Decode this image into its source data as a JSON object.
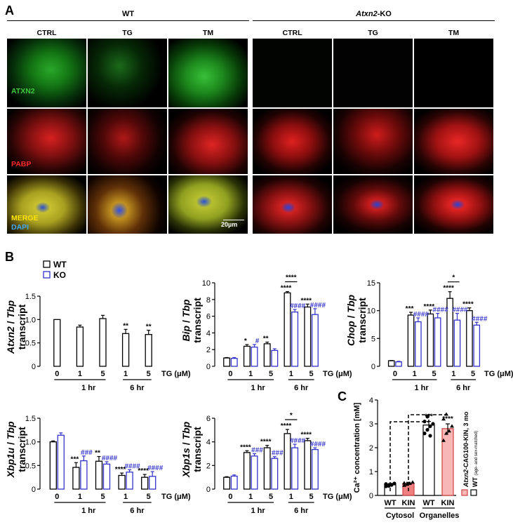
{
  "panel_a": {
    "letter": "A",
    "groups": [
      {
        "title": "WT",
        "title_style": "normal",
        "columns": [
          "CTRL",
          "TG",
          "TM"
        ]
      },
      {
        "title_italic": "Atxn2",
        "title_rest": "-KO",
        "columns": [
          "CTRL",
          "TG",
          "TM"
        ]
      }
    ],
    "rows": [
      {
        "label": "ATXN2",
        "label_color": "#3ec73e"
      },
      {
        "label": "PABP",
        "label_color": "#ff2a2a"
      },
      {
        "label": "MERGE",
        "label_color": "#ffe400",
        "label2": "DAPI",
        "label2_color": "#3fa9f5"
      }
    ],
    "scale_bar": "20µm"
  },
  "panel_b": {
    "letter": "B"
  },
  "panel_c": {
    "letter": "C"
  },
  "legend": {
    "wt": "WT",
    "ko": "KO"
  },
  "colors": {
    "ko": "#3333cc",
    "kin_fill": "#f7b7b7",
    "kin_edge": "#d04040",
    "sig": "#3333cc"
  },
  "chart_data": [
    {
      "type": "bar",
      "ylabel_italic": "Atxn2",
      "ylabel_rest": " / ",
      "ylabel_italic2": "Tbp",
      "ylabel2": "transcript",
      "ylim": [
        0,
        1.5
      ],
      "yticks": [
        0,
        0.5,
        1.0,
        1.5
      ],
      "ytick_labels": [
        "0",
        "0.5",
        "1.0",
        "1.5"
      ],
      "categories": [
        "0",
        "1",
        "5",
        "1",
        "5"
      ],
      "time_groups": [
        "1 hr",
        "6 hr"
      ],
      "xunit": "TG (μM)",
      "series": [
        {
          "name": "WT",
          "values": [
            1.0,
            0.84,
            1.02,
            0.7,
            0.68
          ],
          "errors": [
            0,
            0.04,
            0.07,
            0.09,
            0.09
          ]
        },
        {
          "name": "KO",
          "values": [
            null,
            null,
            null,
            null,
            null
          ],
          "errors": []
        }
      ],
      "annotations": [
        {
          "cat": 3,
          "series": 0,
          "text": "**"
        },
        {
          "cat": 4,
          "series": 0,
          "text": "**"
        }
      ]
    },
    {
      "type": "bar",
      "ylabel_italic": "Bip",
      "ylabel_rest": " / ",
      "ylabel_italic2": "Tbp",
      "ylabel2": "transcript",
      "ylim": [
        0,
        10
      ],
      "yticks": [
        0,
        2,
        4,
        6,
        8,
        10
      ],
      "ytick_labels": [
        "0",
        "2",
        "4",
        "6",
        "8",
        "10"
      ],
      "categories": [
        "0",
        "1",
        "5",
        "1",
        "5"
      ],
      "time_groups": [
        "1 hr",
        "6 hr"
      ],
      "xunit": "TG (μM)",
      "series": [
        {
          "name": "WT",
          "values": [
            1.0,
            2.4,
            2.7,
            8.8,
            7.1
          ],
          "errors": [
            0.05,
            0.2,
            0.2,
            0.15,
            0.35
          ]
        },
        {
          "name": "KO",
          "values": [
            0.95,
            2.3,
            1.9,
            6.5,
            6.2
          ],
          "errors": [
            0.1,
            0.3,
            0.2,
            0.3,
            0.7
          ]
        }
      ],
      "annotations": [
        {
          "cat": 1,
          "series": 0,
          "text": "*"
        },
        {
          "cat": 1,
          "series": 1,
          "text": "#"
        },
        {
          "cat": 2,
          "series": 0,
          "text": "**"
        },
        {
          "cat": 3,
          "series": 0,
          "text": "****"
        },
        {
          "cat": 3,
          "series": 1,
          "text": "####"
        },
        {
          "cat": 4,
          "series": 0,
          "text": "****"
        },
        {
          "cat": 4,
          "series": 1,
          "text": "####"
        }
      ],
      "brackets": [
        {
          "cat": 3,
          "text": "****"
        }
      ]
    },
    {
      "type": "bar",
      "ylabel_italic": "Chop",
      "ylabel_rest": " / ",
      "ylabel_italic2": "Tbp",
      "ylabel2": "transcript",
      "ylim": [
        0,
        15
      ],
      "yticks": [
        0,
        5,
        10,
        15
      ],
      "ytick_labels": [
        "0",
        "5",
        "10",
        "15"
      ],
      "categories": [
        "0",
        "1",
        "5",
        "1",
        "5"
      ],
      "time_groups": [
        "1 hr",
        "6 hr"
      ],
      "xunit": "TG (μM)",
      "series": [
        {
          "name": "WT",
          "values": [
            1.0,
            9.2,
            9.4,
            12.2,
            10.0
          ],
          "errors": [
            0.05,
            0.5,
            0.7,
            1.2,
            0.5
          ]
        },
        {
          "name": "KO",
          "values": [
            0.8,
            8.0,
            8.7,
            8.3,
            7.4
          ],
          "errors": [
            0.1,
            0.7,
            0.8,
            1.2,
            0.5
          ]
        }
      ],
      "annotations": [
        {
          "cat": 1,
          "series": 0,
          "text": "***"
        },
        {
          "cat": 1,
          "series": 1,
          "text": "####"
        },
        {
          "cat": 2,
          "series": 0,
          "text": "****"
        },
        {
          "cat": 2,
          "series": 1,
          "text": "####"
        },
        {
          "cat": 3,
          "series": 0,
          "text": "****"
        },
        {
          "cat": 3,
          "series": 1,
          "text": "####"
        },
        {
          "cat": 4,
          "series": 0,
          "text": "****"
        },
        {
          "cat": 4,
          "series": 1,
          "text": "####"
        }
      ],
      "brackets": [
        {
          "cat": 3,
          "text": "*"
        }
      ]
    },
    {
      "type": "bar",
      "ylabel_italic": "Xbp1u",
      "ylabel_rest": " / ",
      "ylabel_italic2": "Tbp",
      "ylabel2": "transcript",
      "ylim": [
        0,
        1.5
      ],
      "yticks": [
        0,
        0.5,
        1.0,
        1.5
      ],
      "ytick_labels": [
        "0",
        "0.5",
        "1.0",
        "1.5"
      ],
      "categories": [
        "0",
        "1",
        "5",
        "1",
        "5"
      ],
      "time_groups": [
        "1 hr",
        "6 hr"
      ],
      "xunit": "TG (μM)",
      "series": [
        {
          "name": "WT",
          "values": [
            1.0,
            0.46,
            0.59,
            0.29,
            0.25
          ],
          "errors": [
            0.02,
            0.1,
            0.1,
            0.05,
            0.06
          ]
        },
        {
          "name": "KO",
          "values": [
            1.14,
            0.6,
            0.53,
            0.36,
            0.27
          ],
          "errors": [
            0.05,
            0.1,
            0.05,
            0.05,
            0.1
          ]
        }
      ],
      "annotations": [
        {
          "cat": 1,
          "series": 0,
          "text": "***"
        },
        {
          "cat": 1,
          "series": 1,
          "text": "###"
        },
        {
          "cat": 2,
          "series": 0,
          "text": "**"
        },
        {
          "cat": 2,
          "series": 1,
          "text": "####"
        },
        {
          "cat": 3,
          "series": 0,
          "text": "****"
        },
        {
          "cat": 3,
          "series": 1,
          "text": "####"
        },
        {
          "cat": 4,
          "series": 0,
          "text": "****"
        },
        {
          "cat": 4,
          "series": 1,
          "text": "####"
        }
      ]
    },
    {
      "type": "bar",
      "ylabel_italic": "Xbp1s",
      "ylabel_rest": " / ",
      "ylabel_italic2": "Tbp",
      "ylabel2": "transcript",
      "ylim": [
        0,
        6
      ],
      "yticks": [
        0,
        2,
        4,
        6
      ],
      "ytick_labels": [
        "0",
        "2",
        "4",
        "6"
      ],
      "categories": [
        "0",
        "1",
        "5",
        "1",
        "5"
      ],
      "time_groups": [
        "1 hr",
        "6 hr"
      ],
      "xunit": "TG (μM)",
      "series": [
        {
          "name": "WT",
          "values": [
            1.0,
            3.1,
            3.5,
            4.7,
            4.1
          ],
          "errors": [
            0.05,
            0.15,
            0.2,
            0.35,
            0.2
          ]
        },
        {
          "name": "KO",
          "values": [
            1.1,
            2.8,
            2.6,
            3.5,
            3.35
          ],
          "errors": [
            0.1,
            0.2,
            0.15,
            0.3,
            0.15
          ]
        }
      ],
      "annotations": [
        {
          "cat": 1,
          "series": 0,
          "text": "****"
        },
        {
          "cat": 1,
          "series": 1,
          "text": "###"
        },
        {
          "cat": 2,
          "series": 0,
          "text": "****"
        },
        {
          "cat": 2,
          "series": 1,
          "text": "###"
        },
        {
          "cat": 3,
          "series": 0,
          "text": "****"
        },
        {
          "cat": 3,
          "series": 1,
          "text": "####"
        },
        {
          "cat": 4,
          "series": 0,
          "text": "****"
        },
        {
          "cat": 4,
          "series": 1,
          "text": "####"
        }
      ],
      "brackets": [
        {
          "cat": 3,
          "text": "*"
        }
      ]
    },
    {
      "type": "scatter",
      "ylabel": "Ca²⁺ concentration [mM]",
      "ylim": [
        0,
        4
      ],
      "yticks": [
        0,
        1,
        2,
        3,
        4
      ],
      "ytick_labels": [
        "0",
        "1",
        "2",
        "3",
        "4"
      ],
      "categories": [
        "WT",
        "KIN",
        "WT",
        "KIN"
      ],
      "compartments": [
        "Cytosol",
        "Organelles"
      ],
      "bars": [
        0.45,
        0.5,
        2.95,
        2.8
      ],
      "errors": [
        0.05,
        0.05,
        0.15,
        0.2
      ],
      "points": [
        [
          0.38,
          0.42,
          0.45,
          0.5,
          0.48,
          0.4,
          0.44
        ],
        [
          0.42,
          0.46,
          0.5,
          0.55,
          0.52,
          0.48
        ],
        [
          2.6,
          2.75,
          2.9,
          3.0,
          3.1,
          3.3,
          2.5
        ],
        [
          2.3,
          2.6,
          2.7,
          2.9,
          3.2,
          3.4
        ]
      ],
      "annotations": [
        {
          "cat": 2,
          "text": "***"
        },
        {
          "cat": 3,
          "text": "****"
        }
      ],
      "legend": [
        {
          "italic": "Atxn2",
          "rest": "-CAG100-KIN, 3 mo"
        },
        {
          "text": "WT",
          "sub": "(age- and sex-matched)"
        }
      ]
    }
  ]
}
